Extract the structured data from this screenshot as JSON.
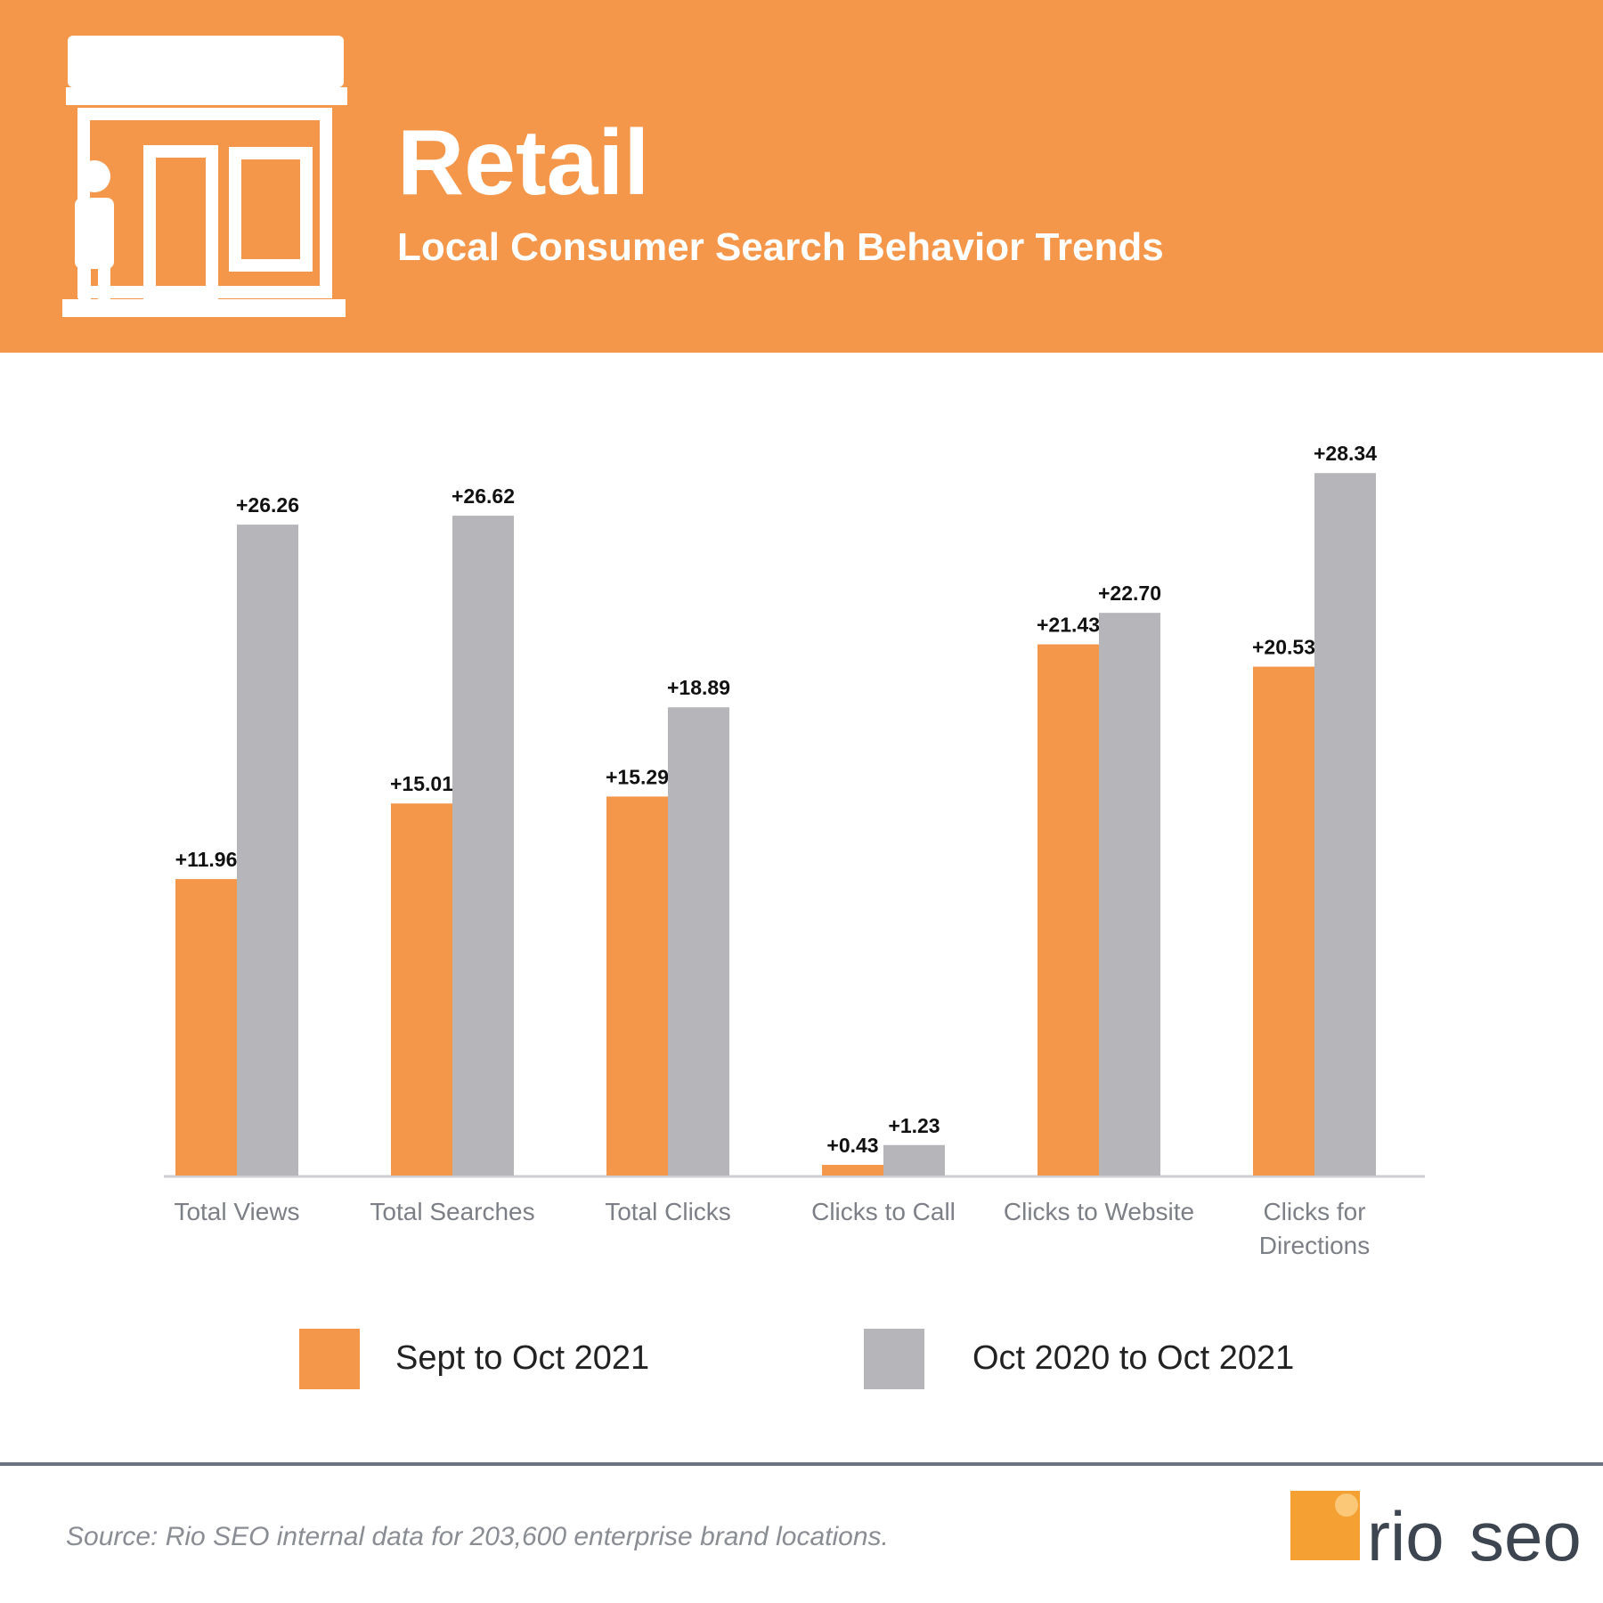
{
  "header": {
    "title": "Retail",
    "subtitle": "Local Consumer Search Behavior Trends"
  },
  "chart_data": {
    "type": "bar",
    "categories": [
      "Total Views",
      "Total Searches",
      "Total Clicks",
      "Clicks to Call",
      "Clicks to Website",
      "Clicks for Directions"
    ],
    "series": [
      {
        "name": "Sept to Oct 2021",
        "color": "#f5974b",
        "values": [
          11.96,
          15.01,
          15.29,
          0.43,
          21.43,
          20.53
        ],
        "value_labels": [
          "+11.96",
          "+15.01",
          "+15.29",
          "+0.43",
          "+21.43",
          "+20.53"
        ]
      },
      {
        "name": "Oct 2020 to Oct 2021",
        "color": "#b5b5ba",
        "values": [
          26.26,
          26.62,
          18.89,
          1.23,
          22.7,
          28.34
        ],
        "value_labels": [
          "+26.26",
          "+26.62",
          "+18.89",
          "+1.23",
          "+22.70",
          "+28.34"
        ]
      }
    ],
    "ylim": [
      0,
      30
    ]
  },
  "footer": {
    "source": "Source: Rio SEO internal data for 203,600 enterprise brand locations.",
    "logo": {
      "left": "rio",
      "right": "seo"
    }
  }
}
